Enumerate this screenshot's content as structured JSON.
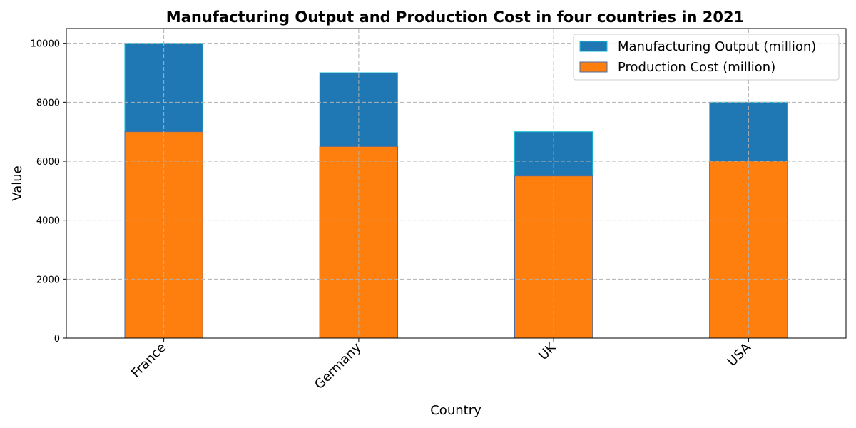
{
  "chart_data": {
    "type": "bar",
    "stacked": false,
    "overlay": true,
    "title": "Manufacturing Output and Production Cost in four countries in 2021",
    "xlabel": "Country",
    "ylabel": "Value",
    "categories": [
      "France",
      "Germany",
      "UK",
      "USA"
    ],
    "series": [
      {
        "name": "Manufacturing Output (million)",
        "values": [
          10000,
          9000,
          7000,
          8000
        ],
        "color": "#1f77b4",
        "edge_color": "#17becf"
      },
      {
        "name": "Production Cost (million)",
        "values": [
          7000,
          6500,
          5500,
          6000
        ],
        "color": "#ff7f0e",
        "edge_color": "#4c6ea6"
      }
    ],
    "ylim": [
      0,
      10500
    ],
    "yticks": [
      0,
      2000,
      4000,
      6000,
      8000,
      10000
    ],
    "grid": true,
    "legend_position": "top-right",
    "xtick_rotation": 45
  }
}
